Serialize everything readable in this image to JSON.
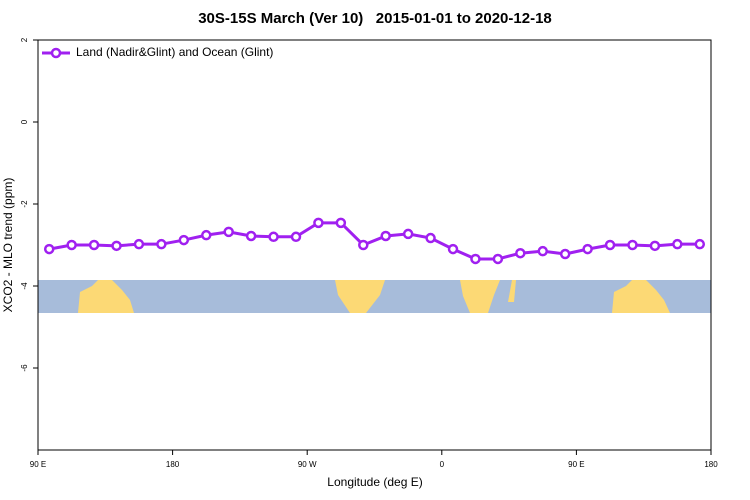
{
  "chart_data": {
    "type": "line",
    "title": "30S-15S March (Ver 10)   2015-01-01 to 2020-12-18",
    "x_label": "Longitude (deg E)",
    "y_label": "XCO2 - MLO trend (ppm)",
    "x": [
      97.5,
      112.5,
      127.5,
      142.5,
      157.5,
      172.5,
      187.5,
      202.5,
      217.5,
      232.5,
      247.5,
      262.5,
      277.5,
      292.5,
      307.5,
      322.5,
      337.5,
      352.5,
      367.5,
      382.5,
      397.5,
      412.5,
      427.5,
      442.5,
      457.5,
      472.5,
      487.5,
      502.5,
      517.5,
      532.5
    ],
    "series": [
      {
        "name": "Land (Nadir&Glint) and Ocean (Glint)",
        "color": "#a020f0",
        "values": [
          -3.1,
          -3.0,
          -3.0,
          -3.02,
          -2.98,
          -2.98,
          -2.88,
          -2.76,
          -2.68,
          -2.78,
          -2.8,
          -2.8,
          -2.46,
          -2.46,
          -3.0,
          -2.78,
          -2.73,
          -2.83,
          -3.1,
          -3.34,
          -3.34,
          -3.2,
          -3.15,
          -3.22,
          -3.1,
          -3.0,
          -3.0,
          -3.02,
          -2.98,
          -2.98
        ]
      }
    ],
    "xlim": [
      90,
      540
    ],
    "xticks": [
      {
        "value": 90,
        "label": "90 E"
      },
      180,
      {
        "value": 270,
        "label": "90 W"
      },
      {
        "value": 360,
        "label": "0"
      },
      {
        "value": 450,
        "label": "90 E"
      },
      {
        "value": 540,
        "label": "180"
      }
    ],
    "ylim": [
      -8,
      2
    ],
    "yticks": [
      -6,
      -4,
      -2,
      0,
      2
    ],
    "legend_position": "upper-left"
  }
}
